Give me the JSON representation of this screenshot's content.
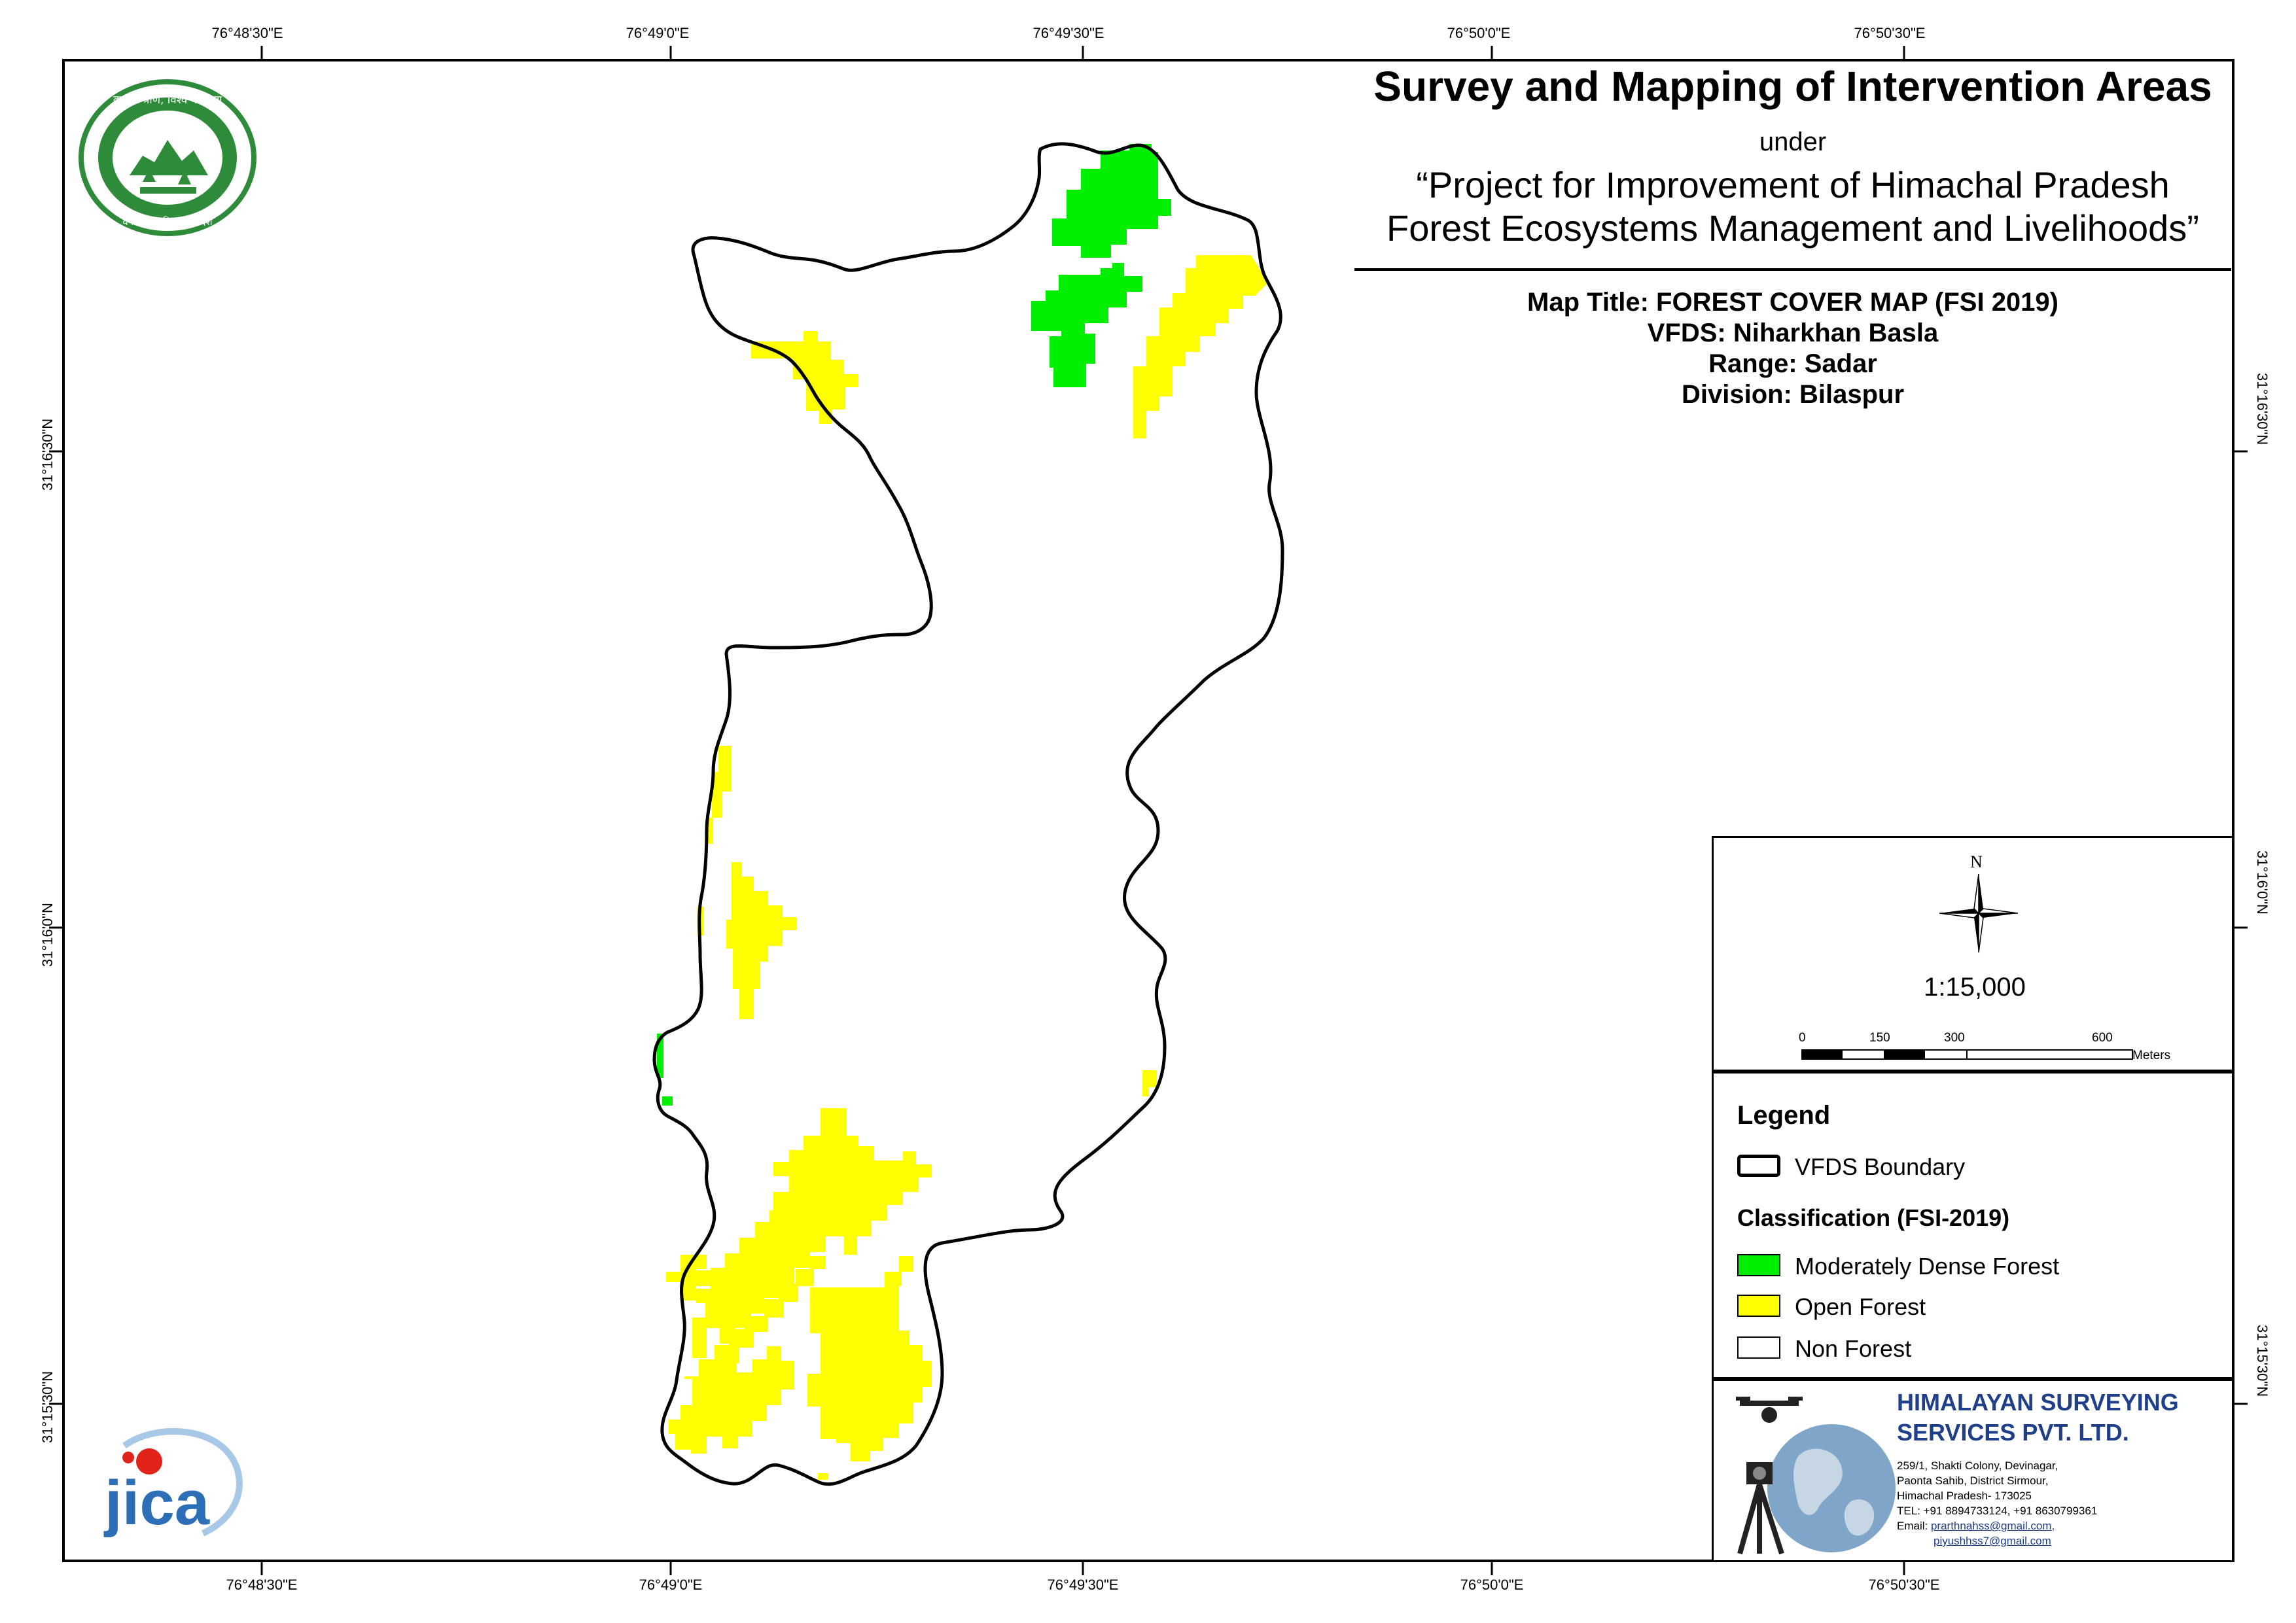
{
  "title": {
    "main": "Survey and Mapping of Intervention Areas",
    "under": "under",
    "project_line1": "“Project for Improvement of Himachal Pradesh",
    "project_line2": "Forest Ecosystems Management and Livelihoods”"
  },
  "meta": {
    "map_title": "Map Title: FOREST COVER MAP (FSI 2019)",
    "vfds": "VFDS: Niharkhan Basla",
    "range": "Range: Sadar",
    "division": "Division: Bilaspur"
  },
  "graticule": {
    "top": [
      "76°48'30\"E",
      "76°49'0\"E",
      "76°49'30\"E",
      "76°50'0\"E",
      "76°50'30\"E"
    ],
    "bottom": [
      "76°48'30\"E",
      "76°49'0\"E",
      "76°49'30\"E",
      "76°50'0\"E",
      "76°50'30\"E"
    ],
    "left": [
      "31°16'30\"N",
      "31°16'0\"N",
      "31°15'30\"N"
    ],
    "right": [
      "31°16'30\"N",
      "31°16'0\"N",
      "31°15'30\"N"
    ]
  },
  "north_arrow": {
    "label": "N"
  },
  "scale": {
    "ratio": "1:15,000",
    "ticks": [
      "0",
      "150",
      "300",
      "600"
    ],
    "unit": "Meters"
  },
  "legend": {
    "title": "Legend",
    "boundary": "VFDS Boundary",
    "classification_title": "Classification (FSI-2019)",
    "items": [
      {
        "label": "Moderately Dense Forest",
        "color": "#00ee00"
      },
      {
        "label": "Open Forest",
        "color": "#ffff00"
      },
      {
        "label": "Non Forest",
        "color": "#ffffff"
      }
    ]
  },
  "company": {
    "name_line1": "HIMALAYAN SURVEYING",
    "name_line2": "SERVICES PVT. LTD.",
    "addr1": "259/1, Shakti Colony, Devinagar,",
    "addr2": "Paonta Sahib, District Sirmour,",
    "addr3": "Himachal Pradesh- 173025",
    "phone": "TEL: +91 8894733124, +91 8630799361",
    "email_label": "Email:",
    "email1": "prarthnahss@gmail.com,",
    "email2": "piyushhss7@gmail.com"
  },
  "logos": {
    "hp_forest_text_top": "वन श्री त्राण, विश्व कल्याण",
    "hp_forest_text_bottom": "वन विभाग हिमाचल प्रदेश",
    "jica": "jica"
  },
  "colors": {
    "moderately_dense": "#00ee00",
    "open_forest": "#ffff00",
    "boundary": "#000000",
    "company_blue": "#1f3f8a",
    "jica_blue": "#2c6fb7",
    "jica_red": "#e2231a",
    "hp_green": "#2e8b3a"
  }
}
